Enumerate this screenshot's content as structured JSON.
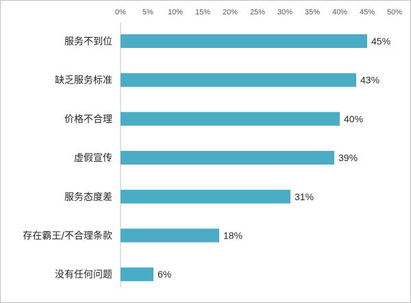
{
  "chart_data": {
    "type": "bar",
    "orientation": "horizontal",
    "title": "",
    "xlabel": "",
    "ylabel": "",
    "categories": [
      "服务不到位",
      "缺乏服务标准",
      "价格不合理",
      "虚假宣传",
      "服务态度差",
      "存在霸王/不合理条款",
      "没有任何问题"
    ],
    "values": [
      45,
      43,
      40,
      39,
      31,
      18,
      6
    ],
    "value_labels": [
      "45%",
      "43%",
      "40%",
      "39%",
      "31%",
      "18%",
      "6%"
    ],
    "xlim": [
      0,
      50
    ],
    "xticks": [
      0,
      5,
      10,
      15,
      20,
      25,
      30,
      35,
      40,
      45,
      50
    ],
    "xtick_labels": [
      "0%",
      "5%",
      "10%",
      "15%",
      "20%",
      "25%",
      "30%",
      "35%",
      "40%",
      "45%",
      "50%"
    ],
    "axis_position": "top",
    "grid": false,
    "legend": "none",
    "bar_color": "#4bacc6"
  }
}
